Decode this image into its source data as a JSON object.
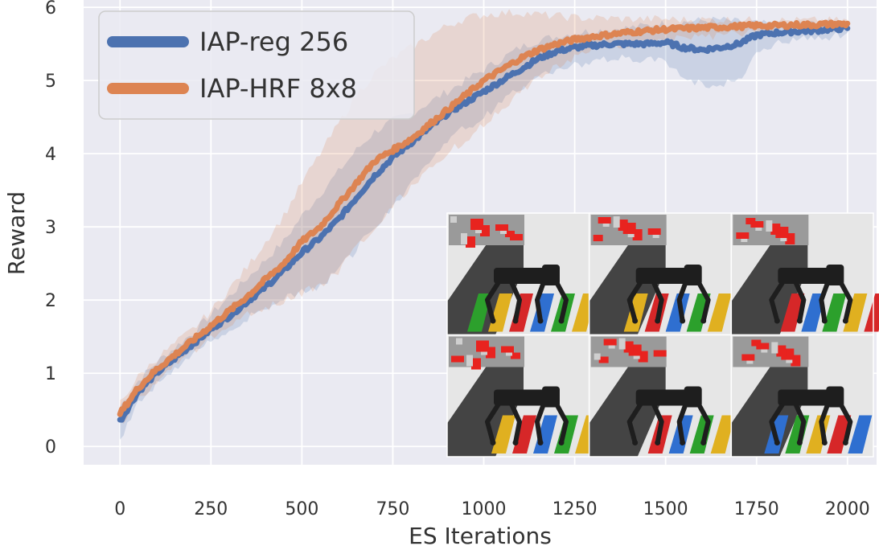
{
  "chart_data": {
    "type": "line",
    "title": "",
    "xlabel": "ES Iterations",
    "ylabel": "Reward",
    "xlim": [
      -100,
      2080
    ],
    "ylim": [
      -0.25,
      6.1
    ],
    "x_ticks": [
      0,
      250,
      500,
      750,
      1000,
      1250,
      1500,
      1750,
      2000
    ],
    "y_ticks": [
      0,
      1,
      2,
      3,
      4,
      5,
      6
    ],
    "grid": true,
    "legend_position": "top-left",
    "x": [
      0,
      50,
      100,
      150,
      200,
      250,
      300,
      350,
      400,
      450,
      500,
      550,
      600,
      650,
      700,
      750,
      800,
      850,
      900,
      950,
      1000,
      1050,
      1100,
      1150,
      1200,
      1250,
      1300,
      1350,
      1400,
      1450,
      1500,
      1550,
      1600,
      1650,
      1700,
      1750,
      1800,
      1850,
      1900,
      1950,
      2000
    ],
    "series": [
      {
        "name": "IAP-reg 256",
        "color": "#4c72b0",
        "values": [
          0.35,
          0.75,
          1.0,
          1.2,
          1.4,
          1.6,
          1.78,
          1.98,
          2.18,
          2.4,
          2.65,
          2.85,
          3.1,
          3.4,
          3.7,
          3.95,
          4.15,
          4.35,
          4.55,
          4.7,
          4.85,
          5.0,
          5.15,
          5.3,
          5.4,
          5.45,
          5.48,
          5.5,
          5.5,
          5.5,
          5.52,
          5.45,
          5.42,
          5.45,
          5.5,
          5.62,
          5.65,
          5.67,
          5.68,
          5.7,
          5.72
        ],
        "band_lower": [
          0.1,
          0.6,
          0.85,
          1.05,
          1.25,
          1.45,
          1.6,
          1.75,
          1.9,
          2.05,
          2.1,
          2.2,
          2.4,
          2.7,
          3.0,
          3.3,
          3.6,
          3.9,
          4.2,
          4.35,
          4.5,
          4.7,
          4.9,
          5.05,
          5.15,
          5.2,
          5.25,
          5.3,
          5.3,
          5.28,
          5.25,
          5.05,
          4.95,
          4.95,
          5.0,
          5.4,
          5.5,
          5.55,
          5.58,
          5.6,
          5.65
        ],
        "band_upper": [
          0.55,
          0.9,
          1.15,
          1.35,
          1.55,
          1.8,
          2.05,
          2.3,
          2.55,
          2.8,
          3.15,
          3.45,
          3.75,
          4.05,
          4.3,
          4.45,
          4.55,
          4.7,
          4.85,
          5.0,
          5.15,
          5.3,
          5.45,
          5.55,
          5.6,
          5.65,
          5.68,
          5.7,
          5.72,
          5.75,
          5.78,
          5.8,
          5.82,
          5.83,
          5.8,
          5.78,
          5.76,
          5.76,
          5.77,
          5.78,
          5.8
        ]
      },
      {
        "name": "IAP-HRF 8x8",
        "color": "#dd8452",
        "values": [
          0.45,
          0.8,
          1.05,
          1.25,
          1.45,
          1.65,
          1.85,
          2.05,
          2.28,
          2.5,
          2.8,
          3.0,
          3.3,
          3.6,
          3.9,
          4.05,
          4.2,
          4.4,
          4.6,
          4.8,
          5.0,
          5.15,
          5.3,
          5.42,
          5.5,
          5.56,
          5.6,
          5.63,
          5.66,
          5.68,
          5.7,
          5.71,
          5.72,
          5.73,
          5.74,
          5.75,
          5.75,
          5.76,
          5.76,
          5.77,
          5.77
        ],
        "band_lower": [
          0.3,
          0.65,
          0.9,
          1.1,
          1.3,
          1.5,
          1.65,
          1.8,
          1.9,
          2.0,
          2.1,
          2.2,
          2.4,
          2.7,
          3.0,
          3.3,
          3.55,
          3.8,
          4.0,
          4.2,
          4.4,
          4.6,
          4.85,
          5.05,
          5.2,
          5.3,
          5.4,
          5.45,
          5.5,
          5.52,
          5.55,
          5.58,
          5.6,
          5.62,
          5.64,
          5.66,
          5.68,
          5.7,
          5.7,
          5.71,
          5.72
        ],
        "band_upper": [
          0.6,
          0.95,
          1.2,
          1.4,
          1.6,
          1.85,
          2.15,
          2.45,
          2.8,
          3.15,
          3.6,
          4.0,
          4.4,
          4.8,
          5.1,
          5.3,
          5.45,
          5.6,
          5.75,
          5.85,
          5.9,
          5.92,
          5.93,
          5.9,
          5.88,
          5.86,
          5.85,
          5.85,
          5.84,
          5.84,
          5.84,
          5.83,
          5.83,
          5.83,
          5.83,
          5.82,
          5.82,
          5.82,
          5.82,
          5.82,
          5.82
        ]
      }
    ]
  },
  "inset": {
    "background": "#e6e6e6",
    "ramp_color": "#444444",
    "robot_color": "#1e1e1e",
    "stair_colors": [
      "#2ca02c",
      "#e0b020",
      "#d62728",
      "#2f6fd0"
    ],
    "thumb_colors": [
      "#e8231f",
      "#9a9a9a",
      "#cfcfcf"
    ]
  },
  "style": {
    "plot_background": "#eaeaf2",
    "grid_color": "#ffffff"
  }
}
